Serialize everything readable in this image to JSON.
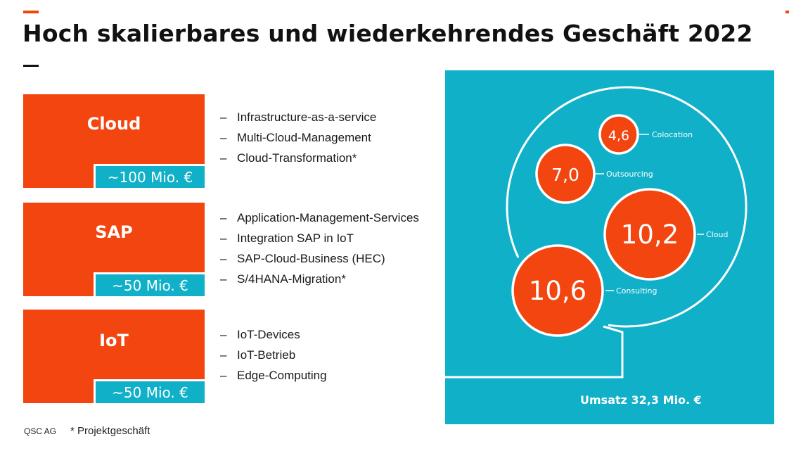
{
  "title": "Hoch skalierbares und wiederkehrendes Geschäft 2022",
  "colors": {
    "accent": "#f2450f",
    "teal": "#0fb0c8",
    "text": "#111111",
    "white": "#ffffff"
  },
  "segments": [
    {
      "name": "Cloud",
      "revenue": "~100 Mio. €",
      "bullets": [
        "Infrastructure-as-a-service",
        "Multi-Cloud-Management",
        "Cloud-Transformation*"
      ]
    },
    {
      "name": "SAP",
      "revenue": "~50 Mio. €",
      "bullets": [
        "Application-Management-Services",
        "Integration SAP in IoT",
        "SAP-Cloud-Business (HEC)",
        "S/4HANA-Migration*"
      ]
    },
    {
      "name": "IoT",
      "revenue": "~50 Mio. €",
      "bullets": [
        "IoT-Devices",
        "IoT-Betrieb",
        "Edge-Computing"
      ]
    }
  ],
  "bullet_dash": "–",
  "diagram": {
    "bubbles": [
      {
        "value": "4,6",
        "label": "Colocation"
      },
      {
        "value": "7,0",
        "label": "Outsourcing"
      },
      {
        "value": "10,2",
        "label": "Cloud"
      },
      {
        "value": "10,6",
        "label": "Consulting"
      }
    ],
    "total": "Umsatz 32,3 Mio. €"
  },
  "footer": {
    "company": "QSC AG",
    "note": "* Projektgeschäft"
  }
}
